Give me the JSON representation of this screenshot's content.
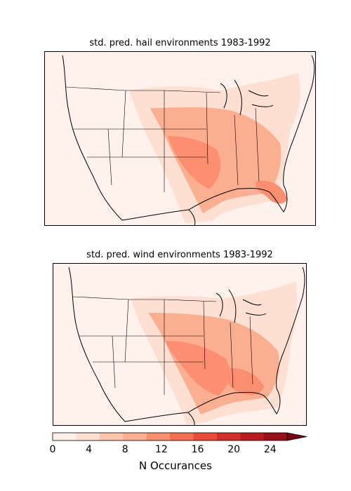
{
  "maps": [
    {
      "title": "std. pred. hail environments 1983-1992"
    },
    {
      "title": "std. pred. wind environments 1983-1992"
    }
  ],
  "colorbar": {
    "ticks": [
      "0",
      "4",
      "8",
      "12",
      "16",
      "20",
      "24"
    ],
    "label": "N Occurances",
    "colors": [
      "#fff0e9",
      "#fee0d2",
      "#fcc5ac",
      "#fcae91",
      "#fb8f6f",
      "#f6704f",
      "#ea4c37",
      "#d42f27",
      "#b91b1e",
      "#980f17",
      "#7a0510"
    ],
    "extend": "max"
  },
  "colors": {
    "ocean": "#fff1ec",
    "land_outline": "#000000"
  }
}
